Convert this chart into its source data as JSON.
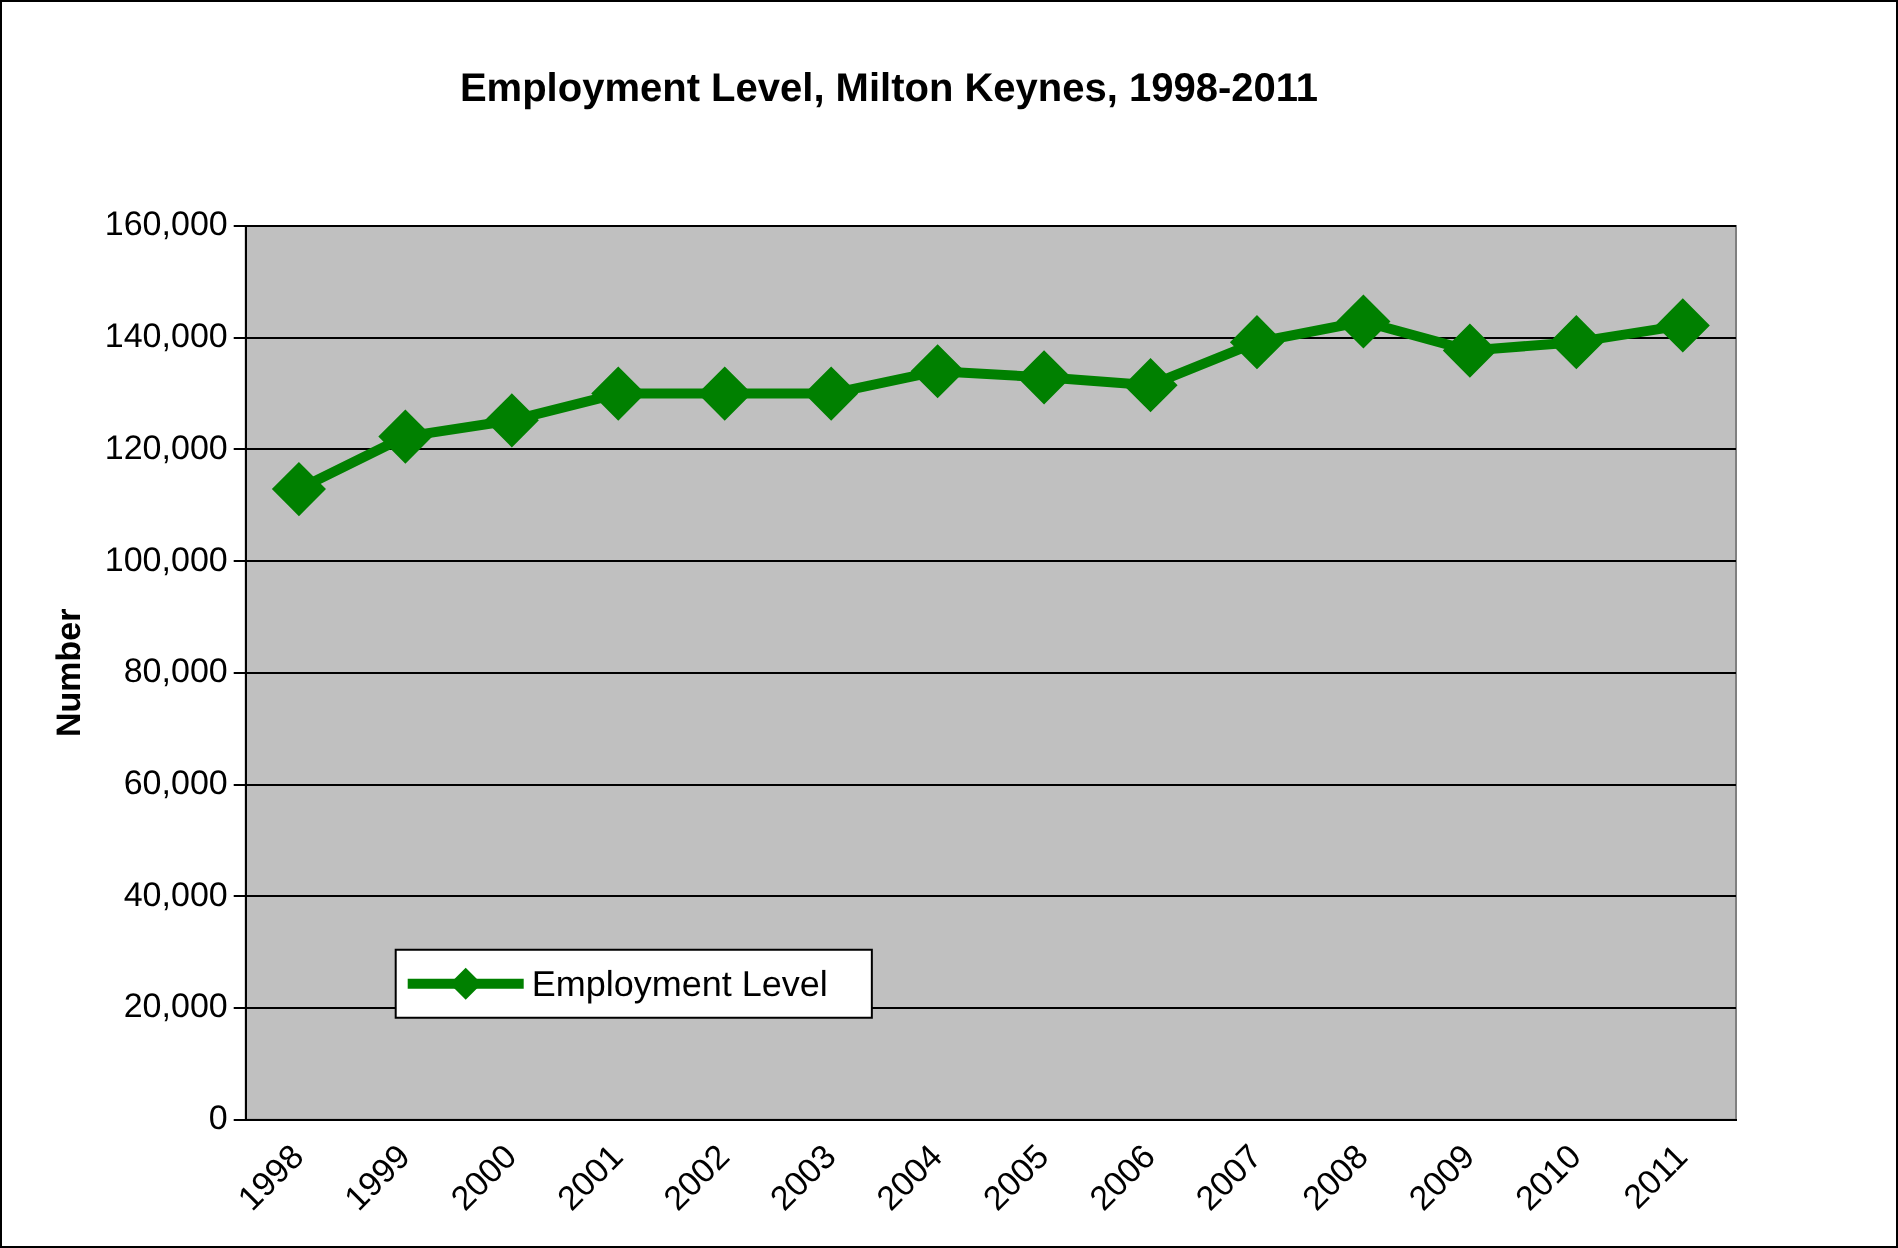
{
  "chart_data": {
    "type": "line",
    "title": "Employment Level, Milton Keynes, 1998-2011",
    "ylabel": "Number",
    "categories": [
      "1998",
      "1999",
      "2000",
      "2001",
      "2002",
      "2003",
      "2004",
      "2005",
      "2006",
      "2007",
      "2008",
      "2009",
      "2010",
      "2011"
    ],
    "series": [
      {
        "name": "Employment Level",
        "color": "#008000",
        "values": [
          112900,
          122300,
          125200,
          130000,
          130000,
          130000,
          134000,
          132900,
          131500,
          139200,
          142900,
          137700,
          139200,
          142200
        ]
      }
    ],
    "ylim": [
      0,
      160000
    ],
    "yticks": [
      0,
      {
        "value": 20000,
        "label": "20,000"
      },
      {
        "value": 40000,
        "label": "40,000"
      },
      {
        "value": 60000,
        "label": "60,000"
      },
      {
        "value": 80000,
        "label": "80,000"
      },
      {
        "value": 100000,
        "label": "100,000"
      },
      {
        "value": 120000,
        "label": "120,000"
      },
      {
        "value": 140000,
        "label": "140,000"
      },
      {
        "value": 160000,
        "label": "160,000"
      }
    ],
    "grid": "y",
    "legend": "bottom left",
    "marker": "diamond",
    "line_style": "solid"
  }
}
